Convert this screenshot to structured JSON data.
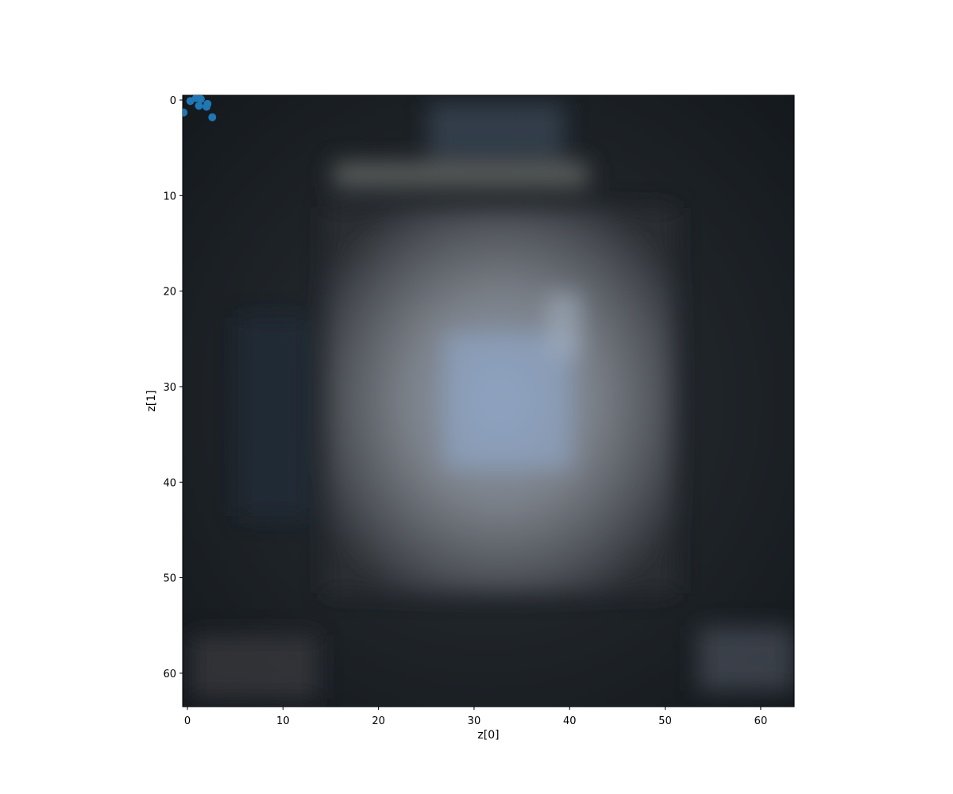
{
  "chart_data": {
    "type": "scatter",
    "background": "image",
    "title": "",
    "xlabel": "z[0]",
    "ylabel": "z[1]",
    "xlim": [
      -0.5,
      63.5
    ],
    "ylim": [
      63.5,
      -0.5
    ],
    "y_inverted": true,
    "xticks": [
      0,
      10,
      20,
      30,
      40,
      50,
      60
    ],
    "yticks": [
      0,
      10,
      20,
      30,
      40,
      50,
      60
    ],
    "grid": false,
    "marker_color": "#1f77b4",
    "points": [
      {
        "x": -0.4,
        "y": 1.3
      },
      {
        "x": 0.3,
        "y": 0.1
      },
      {
        "x": 0.9,
        "y": -0.2
      },
      {
        "x": 1.2,
        "y": 0.6
      },
      {
        "x": 1.4,
        "y": -0.1
      },
      {
        "x": 2.0,
        "y": 0.7
      },
      {
        "x": 2.1,
        "y": 0.4
      },
      {
        "x": 2.6,
        "y": 1.8
      }
    ]
  }
}
